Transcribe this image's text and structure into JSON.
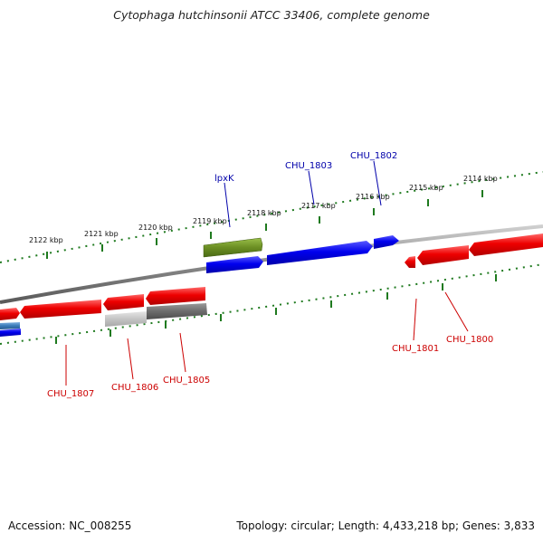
{
  "title": "Cytophaga hutchinsonii ATCC 33406, complete genome",
  "accession": "Accession: NC_008255",
  "summary": "Topology: circular; Length: 4,433,218 bp; Genes: 3,833",
  "colors": {
    "forward_cds": "#0000ee",
    "reverse_cds": "#ee0000",
    "rna": "#6b8e23",
    "pseudo_light": "#c8c8c8",
    "pseudo_dark": "#707070",
    "small_blue": "#3a7ab8",
    "backbone": "#8a8a8a",
    "ticks": "#1f7a1f",
    "label_forward": "#0000aa",
    "label_reverse": "#cc0000"
  },
  "scale": {
    "ticks": [
      {
        "label": "2122 kbp"
      },
      {
        "label": "2121 kbp"
      },
      {
        "label": "2120 kbp"
      },
      {
        "label": "2119 kbp"
      },
      {
        "label": "2118 kbp"
      },
      {
        "label": "2117 kbp"
      },
      {
        "label": "2116 kbp"
      },
      {
        "label": "2115 kbp"
      },
      {
        "label": "2114 kbp"
      }
    ]
  },
  "genes": {
    "top": [
      {
        "label": "lpxK"
      },
      {
        "label": "CHU_1803"
      },
      {
        "label": "CHU_1802"
      }
    ],
    "bottom": [
      {
        "label": "CHU_1807"
      },
      {
        "label": "CHU_1806"
      },
      {
        "label": "CHU_1805"
      },
      {
        "label": "CHU_1801"
      },
      {
        "label": "CHU_1800"
      }
    ]
  }
}
